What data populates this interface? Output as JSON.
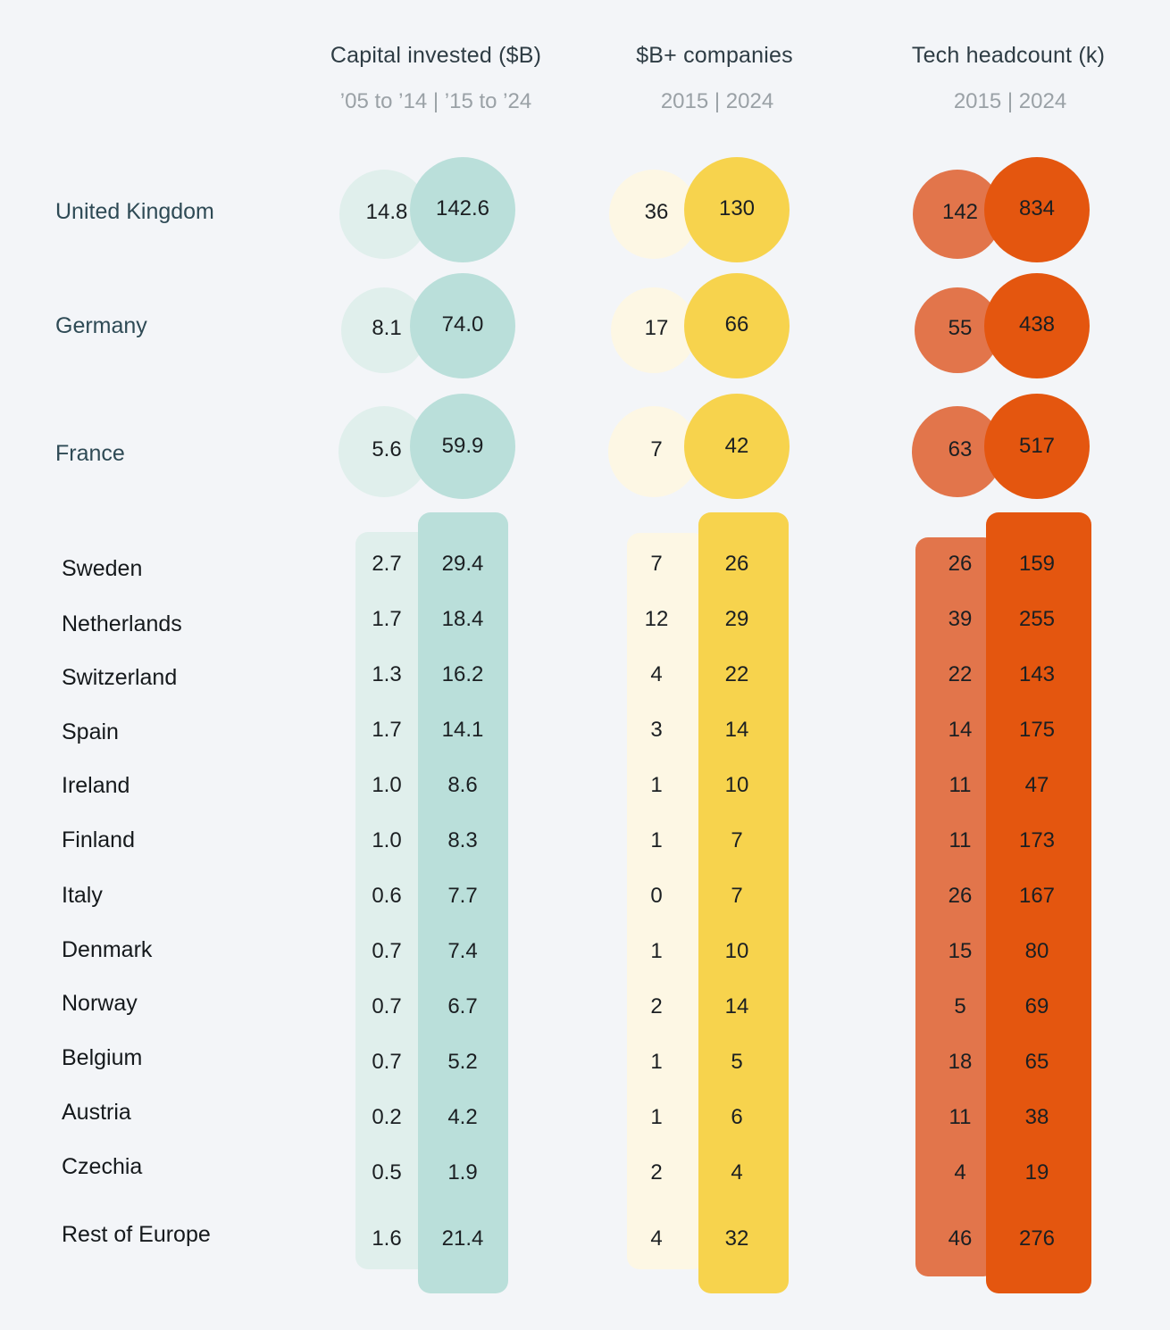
{
  "chart_data": {
    "type": "table",
    "metrics": [
      {
        "title": "Capital invested ($B)",
        "periods": "’05 to ’14 | ’15 to ’24",
        "colors": {
          "first": "#e0efec",
          "second": "#badfda"
        }
      },
      {
        "title": "$B+ companies",
        "periods": "2015 | 2024",
        "colors": {
          "first": "#fdf7e4",
          "second": "#f7d34d"
        }
      },
      {
        "title": "Tech headcount (k)",
        "periods": "2015 | 2024",
        "colors": {
          "first": "#e2754b",
          "second": "#e4560f"
        }
      }
    ],
    "top_countries": [
      {
        "name": "United Kingdom",
        "values": [
          [
            "14.8",
            "142.6"
          ],
          [
            "36",
            "130"
          ],
          [
            "142",
            "834"
          ]
        ]
      },
      {
        "name": "Germany",
        "values": [
          [
            "8.1",
            "74.0"
          ],
          [
            "17",
            "66"
          ],
          [
            "55",
            "438"
          ]
        ]
      },
      {
        "name": "France",
        "values": [
          [
            "5.6",
            "59.9"
          ],
          [
            "7",
            "42"
          ],
          [
            "63",
            "517"
          ]
        ]
      }
    ],
    "other_countries": [
      {
        "name": "Sweden",
        "values": [
          [
            "2.7",
            "29.4"
          ],
          [
            "7",
            "26"
          ],
          [
            "26",
            "159"
          ]
        ]
      },
      {
        "name": "Netherlands",
        "values": [
          [
            "1.7",
            "18.4"
          ],
          [
            "12",
            "29"
          ],
          [
            "39",
            "255"
          ]
        ]
      },
      {
        "name": "Switzerland",
        "values": [
          [
            "1.3",
            "16.2"
          ],
          [
            "4",
            "22"
          ],
          [
            "22",
            "143"
          ]
        ]
      },
      {
        "name": "Spain",
        "values": [
          [
            "1.7",
            "14.1"
          ],
          [
            "3",
            "14"
          ],
          [
            "14",
            "175"
          ]
        ]
      },
      {
        "name": "Ireland",
        "values": [
          [
            "1.0",
            "8.6"
          ],
          [
            "1",
            "10"
          ],
          [
            "11",
            "47"
          ]
        ]
      },
      {
        "name": "Finland",
        "values": [
          [
            "1.0",
            "8.3"
          ],
          [
            "1",
            "7"
          ],
          [
            "11",
            "173"
          ]
        ]
      },
      {
        "name": "Italy",
        "values": [
          [
            "0.6",
            "7.7"
          ],
          [
            "0",
            "7"
          ],
          [
            "26",
            "167"
          ]
        ]
      },
      {
        "name": "Denmark",
        "values": [
          [
            "0.7",
            "7.4"
          ],
          [
            "1",
            "10"
          ],
          [
            "15",
            "80"
          ]
        ]
      },
      {
        "name": "Norway",
        "values": [
          [
            "0.7",
            "6.7"
          ],
          [
            "2",
            "14"
          ],
          [
            "5",
            "69"
          ]
        ]
      },
      {
        "name": "Belgium",
        "values": [
          [
            "0.7",
            "5.2"
          ],
          [
            "1",
            "5"
          ],
          [
            "18",
            "65"
          ]
        ]
      },
      {
        "name": "Austria",
        "values": [
          [
            "0.2",
            "4.2"
          ],
          [
            "1",
            "6"
          ],
          [
            "11",
            "38"
          ]
        ]
      },
      {
        "name": "Czechia",
        "values": [
          [
            "0.5",
            "1.9"
          ],
          [
            "2",
            "4"
          ],
          [
            "4",
            "19"
          ]
        ]
      },
      {
        "name": "Rest of Europe",
        "values": [
          [
            "1.6",
            "21.4"
          ],
          [
            "4",
            "32"
          ],
          [
            "46",
            "276"
          ]
        ]
      }
    ]
  }
}
